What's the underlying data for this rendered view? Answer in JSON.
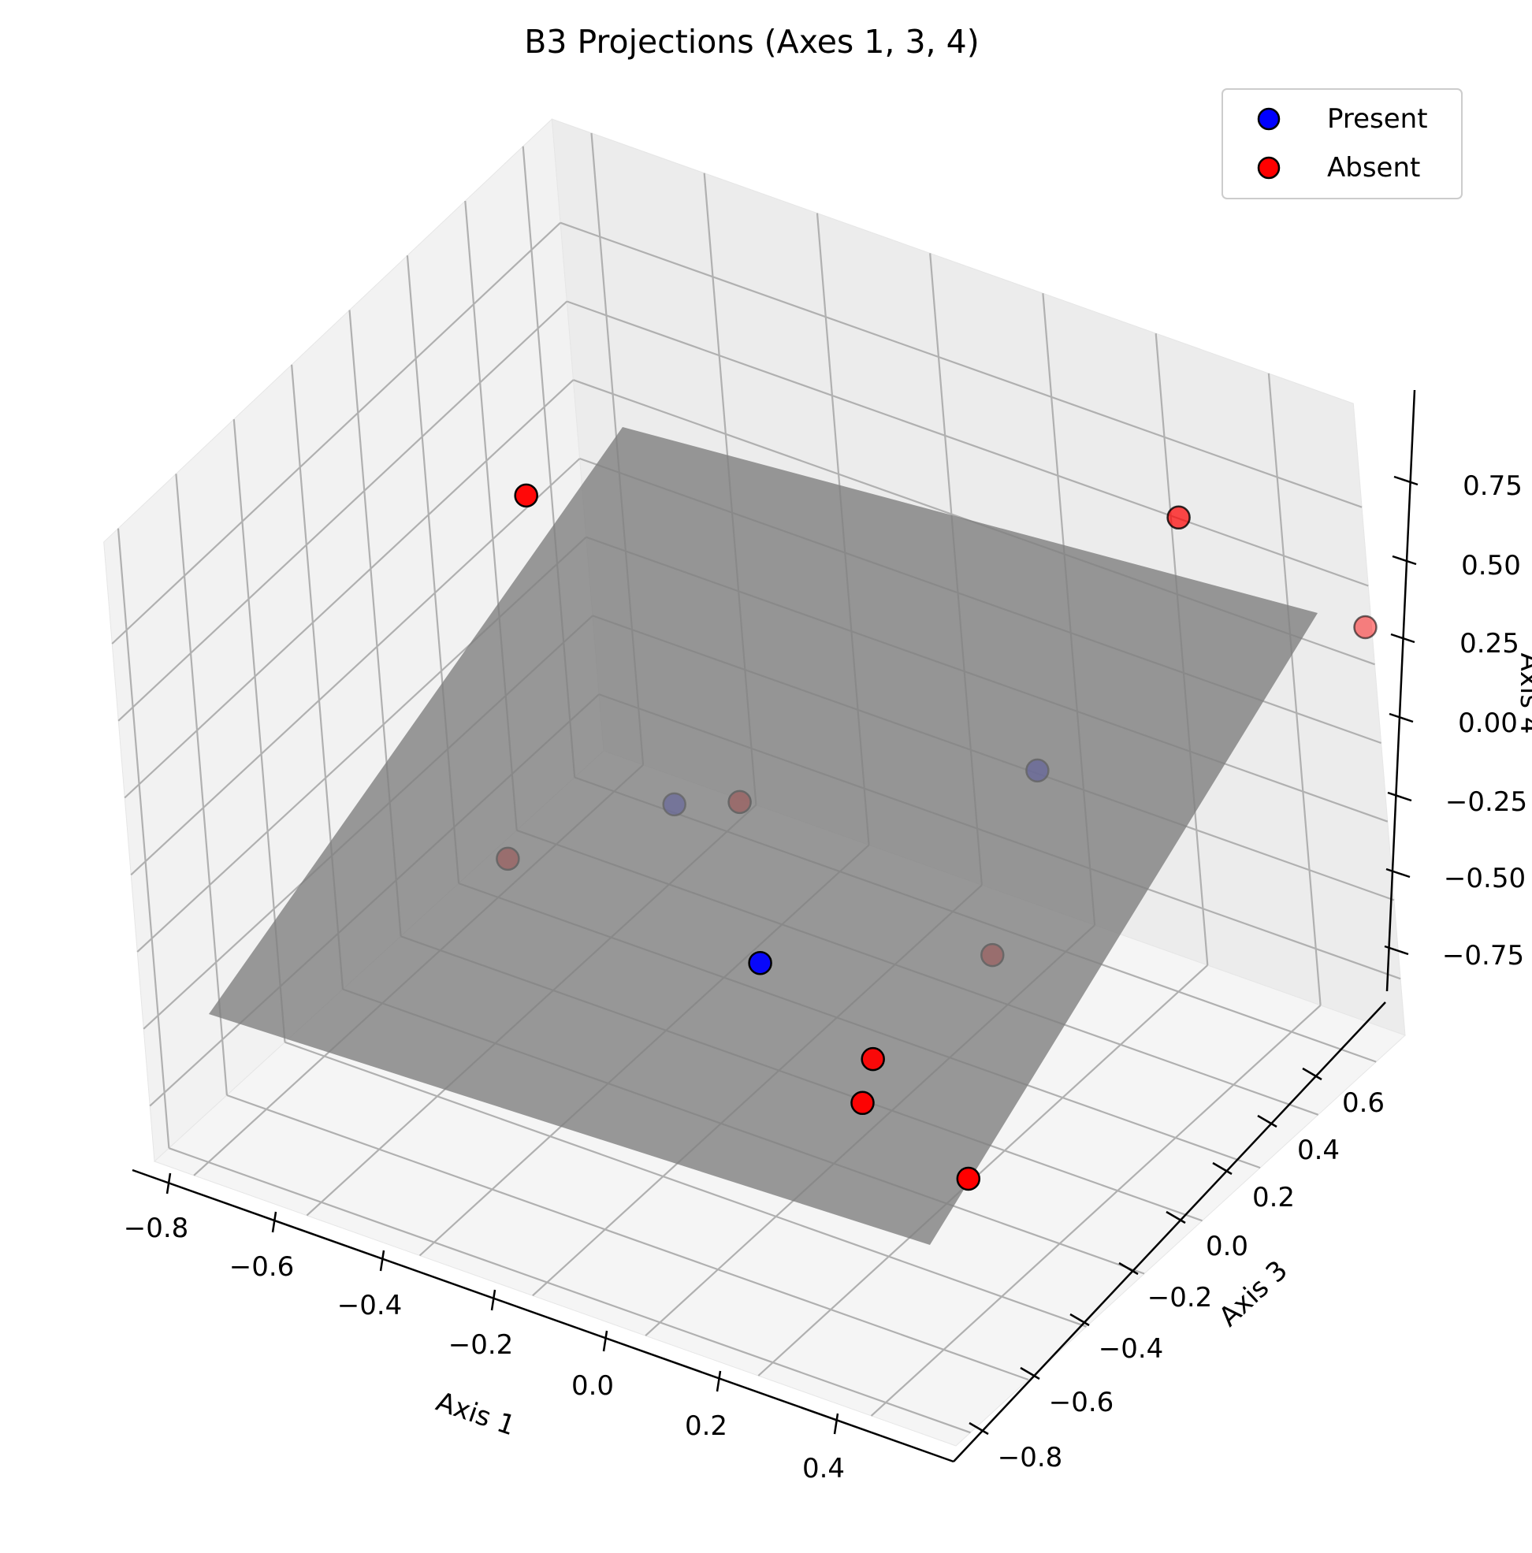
{
  "chart_data": {
    "type": "scatter",
    "projection": "3d",
    "title": "B3 Projections (Axes 1, 3, 4)",
    "xlabel": "Axis 1",
    "ylabel": "Axis 3",
    "zlabel": "Axis 4",
    "xticks": [
      "−0.8",
      "−0.6",
      "−0.4",
      "−0.2",
      "0.0",
      "0.2",
      "0.4"
    ],
    "yticks": [
      "−0.8",
      "−0.6",
      "−0.4",
      "−0.2",
      "0.0",
      "0.2",
      "0.4",
      "0.6"
    ],
    "zticks": [
      "−0.75",
      "−0.50",
      "−0.25",
      "0.00",
      "0.25",
      "0.50",
      "0.75"
    ],
    "xlim": [
      -0.87,
      0.55
    ],
    "ylim": [
      -0.85,
      0.7
    ],
    "zlim": [
      -0.93,
      1.08
    ],
    "grid": true,
    "legend_position": "top-right",
    "plane": {
      "color": "#808080",
      "opacity": 0.8
    },
    "series": [
      {
        "name": "Present",
        "color": "#0000ff",
        "points": [
          {
            "x": -0.55,
            "y": 0.35,
            "z": -0.6
          },
          {
            "x": 0.18,
            "y": 0.24,
            "z": 0.07
          },
          {
            "x": -0.15,
            "y": -0.12,
            "z": -0.45
          }
        ]
      },
      {
        "name": "Absent",
        "color": "#ff0000",
        "points": [
          {
            "x": -0.72,
            "y": 0.1,
            "z": -0.67
          },
          {
            "x": -0.49,
            "y": -0.15,
            "z": 0.86
          },
          {
            "x": 0.43,
            "y": 0.32,
            "z": 0.97
          },
          {
            "x": -0.26,
            "y": 0.05,
            "z": -0.15
          },
          {
            "x": 0.51,
            "y": 0.75,
            "z": 0.3
          },
          {
            "x": 0.15,
            "y": 0.1,
            "z": -0.42
          },
          {
            "x": 0.3,
            "y": -0.3,
            "z": -0.7
          },
          {
            "x": 0.03,
            "y": -0.1,
            "z": -0.66
          },
          {
            "x": 0.05,
            "y": -0.18,
            "z": -0.72
          }
        ]
      }
    ]
  }
}
